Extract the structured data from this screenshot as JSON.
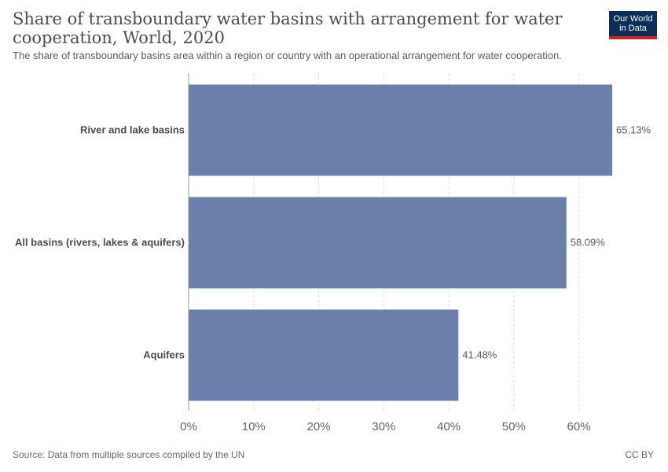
{
  "header": {
    "title": "Share of transboundary water basins with arrangement for water cooperation, World, 2020",
    "subtitle": "The share of transboundary basins area within a region or country with an operational arrangement for water cooperation."
  },
  "logo": {
    "line1": "Our World",
    "line2": "in Data"
  },
  "footer": {
    "source": "Source: Data from multiple sources compiled by the UN",
    "license": "CC BY"
  },
  "colors": {
    "bar": "#6a80ab",
    "grid": "#dddddd",
    "axis": "#999999"
  },
  "chart_data": {
    "type": "bar",
    "orientation": "horizontal",
    "categories": [
      "River and lake basins",
      "All basins (rivers, lakes & aquifers)",
      "Aquifers"
    ],
    "values": [
      65.13,
      58.09,
      41.48
    ],
    "value_labels": [
      "65.13%",
      "58.09%",
      "41.48%"
    ],
    "x_ticks": [
      0,
      10,
      20,
      30,
      40,
      50,
      60
    ],
    "x_tick_labels": [
      "0%",
      "10%",
      "20%",
      "30%",
      "40%",
      "50%",
      "60%"
    ],
    "xlim": [
      0,
      65.13
    ],
    "grid": "vertical dashed"
  }
}
